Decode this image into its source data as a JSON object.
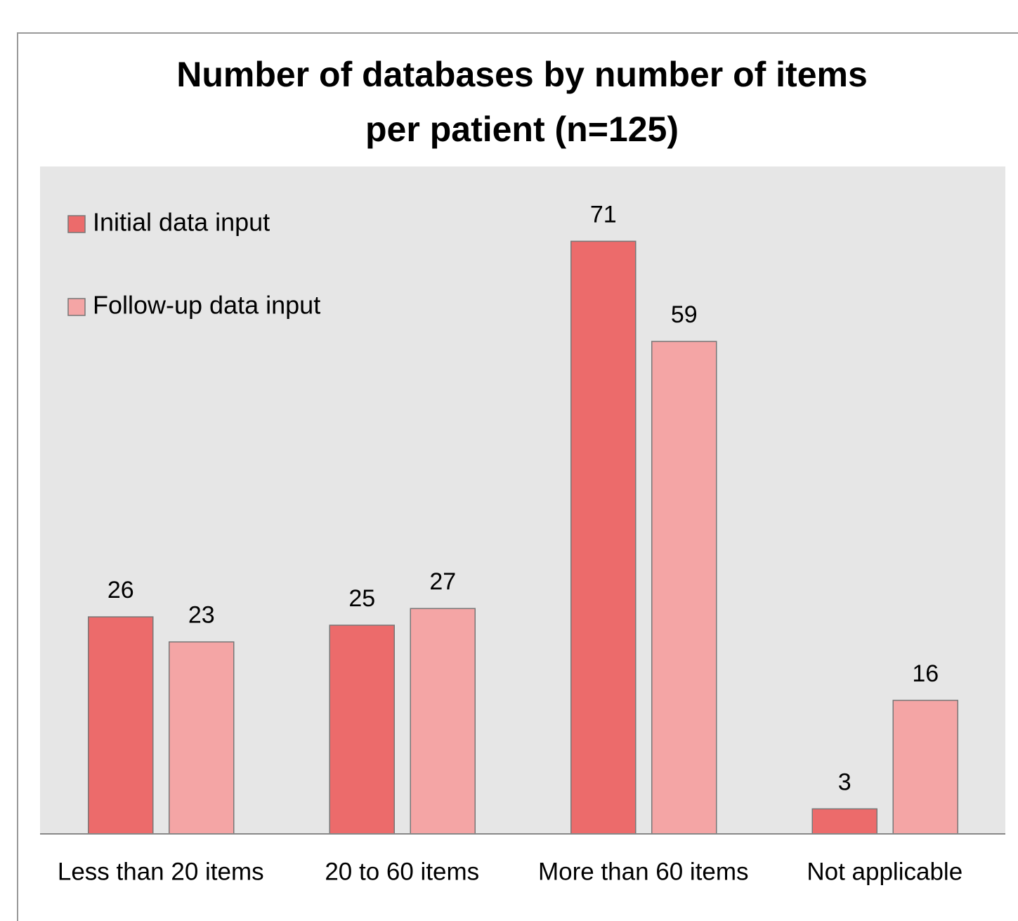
{
  "chart_data": {
    "type": "bar",
    "title": [
      "Number of databases by number of items",
      "per patient (n=125)"
    ],
    "categories": [
      "Less than 20 items",
      "20 to 60 items",
      "More than 60 items",
      "Not applicable"
    ],
    "series": [
      {
        "name": "Initial data input",
        "color": "#ec6b6b",
        "values": [
          26,
          25,
          71,
          3
        ]
      },
      {
        "name": "Follow-up data input",
        "color": "#f4a5a5",
        "values": [
          23,
          27,
          59,
          16
        ]
      }
    ],
    "legend": "top-left"
  }
}
